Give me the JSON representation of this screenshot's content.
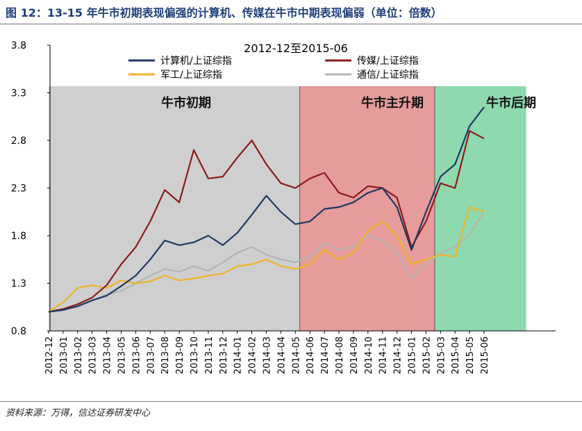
{
  "figure_title": "图 12：13-15 年牛市初期表现偏强的计算机、传媒在牛市中期表现偏弱（单位：倍数）",
  "source": "资料来源：万得，信达证券研发中心",
  "chart_data": {
    "type": "line",
    "title": "2012-12至2015-06",
    "xlabel": "",
    "ylabel": "",
    "ylim": [
      0.8,
      3.8
    ],
    "y_ticks": [
      "3.8",
      "3.3",
      "2.8",
      "2.3",
      "1.8",
      "1.3",
      "0.8"
    ],
    "categories": [
      "2012-12",
      "2013-01",
      "2013-02",
      "2013-03",
      "2013-04",
      "2013-05",
      "2013-06",
      "2013-07",
      "2013-08",
      "2013-09",
      "2013-10",
      "2013-11",
      "2013-12",
      "2014-01",
      "2014-02",
      "2014-03",
      "2014-04",
      "2014-05",
      "2014-06",
      "2014-07",
      "2014-08",
      "2014-09",
      "2014-10",
      "2014-11",
      "2014-12",
      "2015-01",
      "2015-02",
      "2015-03",
      "2015-04",
      "2015-05",
      "2015-06"
    ],
    "phases": [
      {
        "label": "牛市初期",
        "start": 0,
        "end": 17.3,
        "color": "#cfcfcf"
      },
      {
        "label": "牛市主升期",
        "start": 17.3,
        "end": 26.6,
        "color": "#e69c9a"
      },
      {
        "label": "牛市后期",
        "start": 26.6,
        "end": 32.9,
        "color": "#8fd9af"
      }
    ],
    "series": [
      {
        "name": "计算机/上证综指",
        "color": "#1f3864",
        "values": [
          1.0,
          1.02,
          1.06,
          1.12,
          1.17,
          1.27,
          1.38,
          1.55,
          1.75,
          1.7,
          1.73,
          1.8,
          1.7,
          1.83,
          2.02,
          2.22,
          2.05,
          1.92,
          1.95,
          2.08,
          2.1,
          2.15,
          2.25,
          2.3,
          2.1,
          1.65,
          2.05,
          2.42,
          2.55,
          2.95,
          3.15
        ]
      },
      {
        "name": "传媒/上证综指",
        "color": "#8b1a1a",
        "values": [
          1.0,
          1.03,
          1.08,
          1.15,
          1.28,
          1.5,
          1.68,
          1.95,
          2.28,
          2.15,
          2.7,
          2.4,
          2.42,
          2.62,
          2.8,
          2.55,
          2.35,
          2.3,
          2.4,
          2.46,
          2.25,
          2.2,
          2.32,
          2.3,
          2.2,
          1.68,
          1.95,
          2.35,
          2.3,
          2.9,
          2.82
        ]
      },
      {
        "name": "军工/上证综指",
        "color": "#f0b428",
        "values": [
          1.0,
          1.1,
          1.25,
          1.28,
          1.25,
          1.33,
          1.3,
          1.32,
          1.38,
          1.33,
          1.35,
          1.38,
          1.4,
          1.48,
          1.5,
          1.55,
          1.48,
          1.45,
          1.5,
          1.65,
          1.55,
          1.62,
          1.85,
          1.95,
          1.8,
          1.5,
          1.55,
          1.6,
          1.58,
          2.1,
          2.05
        ]
      },
      {
        "name": "通信/上证综指",
        "color": "#b4b4b4",
        "values": [
          1.0,
          1.02,
          1.05,
          1.12,
          1.18,
          1.22,
          1.3,
          1.38,
          1.45,
          1.42,
          1.48,
          1.43,
          1.52,
          1.62,
          1.68,
          1.6,
          1.55,
          1.52,
          1.58,
          1.72,
          1.65,
          1.68,
          1.8,
          1.75,
          1.62,
          1.35,
          1.5,
          1.62,
          1.68,
          1.82,
          2.05
        ]
      }
    ]
  }
}
